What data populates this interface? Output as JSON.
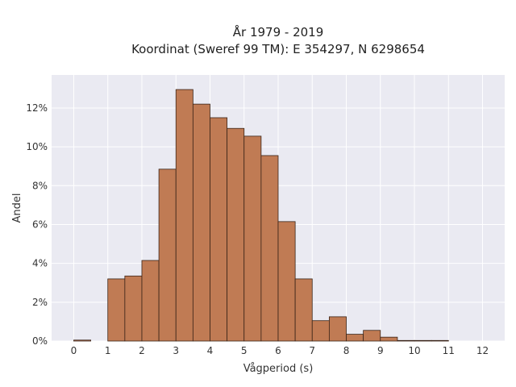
{
  "chart_data": {
    "type": "bar",
    "title_line1": "År 1979 - 2019",
    "title_line2": "Koordinat (Sweref 99 TM): E 354297, N 6298654",
    "xlabel": "Vågperiod (s)",
    "ylabel": "Andel",
    "xlim": [
      -0.65,
      12.65
    ],
    "ylim": [
      0,
      13.7
    ],
    "x_ticks": [
      0,
      1,
      2,
      3,
      4,
      5,
      6,
      7,
      8,
      9,
      10,
      11,
      12
    ],
    "y_ticks": [
      0,
      2,
      4,
      6,
      8,
      10,
      12
    ],
    "y_tick_labels": [
      "0%",
      "2%",
      "4%",
      "6%",
      "8%",
      "10%",
      "12%"
    ],
    "grid": true,
    "bin_width": 0.5,
    "bins": [
      {
        "x0": 0.0,
        "value": 0.05
      },
      {
        "x0": 1.0,
        "value": 3.2
      },
      {
        "x0": 1.5,
        "value": 3.35
      },
      {
        "x0": 2.0,
        "value": 4.15
      },
      {
        "x0": 2.5,
        "value": 8.85
      },
      {
        "x0": 3.0,
        "value": 12.95
      },
      {
        "x0": 3.5,
        "value": 12.2
      },
      {
        "x0": 4.0,
        "value": 11.5
      },
      {
        "x0": 4.5,
        "value": 10.95
      },
      {
        "x0": 5.0,
        "value": 10.55
      },
      {
        "x0": 5.5,
        "value": 9.55
      },
      {
        "x0": 6.0,
        "value": 6.15
      },
      {
        "x0": 6.5,
        "value": 3.2
      },
      {
        "x0": 7.0,
        "value": 1.05
      },
      {
        "x0": 7.5,
        "value": 1.25
      },
      {
        "x0": 8.0,
        "value": 0.35
      },
      {
        "x0": 8.5,
        "value": 0.55
      },
      {
        "x0": 9.0,
        "value": 0.2
      },
      {
        "x0": 9.5,
        "value": 0.03
      },
      {
        "x0": 10.0,
        "value": 0.03
      },
      {
        "x0": 10.5,
        "value": 0.03
      }
    ],
    "bar_color": "#c07b54",
    "background_color": "#eaeaf2"
  }
}
